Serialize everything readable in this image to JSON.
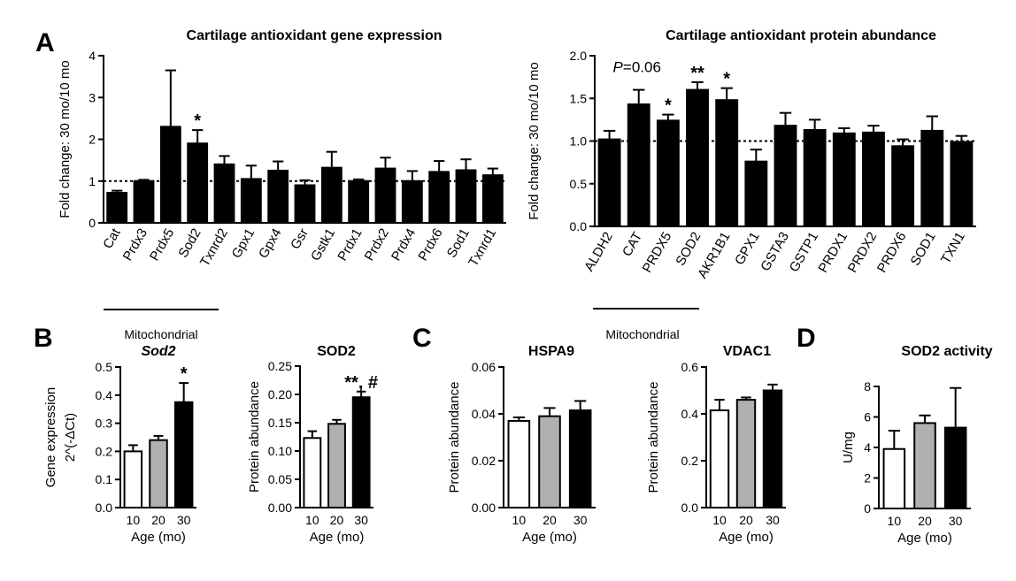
{
  "panel_letters": {
    "A": "A",
    "B": "B",
    "C": "C",
    "D": "D"
  },
  "chart_data": [
    {
      "id": "A1",
      "type": "bar",
      "title": "Cartilage antioxidant gene expression",
      "ylabel": "Fold change: 30 mo/10 mo",
      "ylim": [
        0,
        4
      ],
      "yticks": [
        "0",
        "1",
        "2",
        "3",
        "4"
      ],
      "reference_line": 1,
      "categories": [
        "Cat",
        "Prdx3",
        "Prdx5",
        "Sod2",
        "Txnrd2",
        "Gpx1",
        "Gpx4",
        "Gsr",
        "Gstk1",
        "Prdx1",
        "Prdx2",
        "Prdx4",
        "Prdx6",
        "Sod1",
        "Txnrd1"
      ],
      "values": [
        0.72,
        1.0,
        2.3,
        1.9,
        1.4,
        1.05,
        1.25,
        0.9,
        1.32,
        1.0,
        1.3,
        1.0,
        1.22,
        1.26,
        1.14
      ],
      "errors": [
        0.05,
        0.03,
        1.35,
        0.32,
        0.2,
        0.32,
        0.22,
        0.12,
        0.38,
        0.04,
        0.26,
        0.24,
        0.26,
        0.26,
        0.16
      ],
      "fills": [
        "black",
        "black",
        "black",
        "black",
        "black",
        "black",
        "black",
        "black",
        "black",
        "black",
        "black",
        "black",
        "black",
        "black",
        "black"
      ],
      "annotations": [
        {
          "index": 3,
          "text": "*"
        }
      ],
      "group_label": "Mitochondrial",
      "group_range": [
        0,
        4
      ]
    },
    {
      "id": "A2",
      "type": "bar",
      "title": "Cartilage antioxidant protein abundance",
      "ylabel": "Fold change: 30 mo/10 mo",
      "ylim": [
        0,
        2
      ],
      "yticks": [
        "0.0",
        "0.5",
        "1.0",
        "1.5",
        "2.0"
      ],
      "reference_line": 1,
      "categories": [
        "ALDH2",
        "CAT",
        "PRDX5",
        "SOD2",
        "AKR1B1",
        "GPX1",
        "GSTA3",
        "GSTP1",
        "PRDX1",
        "PRDX2",
        "PRDX6",
        "SOD1",
        "TXN1"
      ],
      "values": [
        1.02,
        1.43,
        1.24,
        1.6,
        1.48,
        0.76,
        1.18,
        1.13,
        1.09,
        1.1,
        0.94,
        1.12,
        0.99
      ],
      "errors": [
        0.1,
        0.17,
        0.07,
        0.09,
        0.14,
        0.14,
        0.15,
        0.12,
        0.06,
        0.08,
        0.08,
        0.17,
        0.07
      ],
      "fills": [
        "black",
        "black",
        "black",
        "black",
        "black",
        "black",
        "black",
        "black",
        "black",
        "black",
        "black",
        "black",
        "black"
      ],
      "annotations": [
        {
          "index": 1,
          "text": "P=0.06"
        },
        {
          "index": 2,
          "text": "*"
        },
        {
          "index": 3,
          "text": "**"
        },
        {
          "index": 4,
          "text": "*"
        }
      ],
      "group_label": "Mitochondrial",
      "group_range": [
        0,
        3
      ]
    },
    {
      "id": "B1",
      "type": "bar",
      "title": "Sod2",
      "ylabel": "Gene expression",
      "ylabel2": "2^(-ΔCt)",
      "xlabel": "Age (mo)",
      "ylim": [
        0,
        0.5
      ],
      "yticks": [
        "0.0",
        "0.1",
        "0.2",
        "0.3",
        "0.4",
        "0.5"
      ],
      "categories": [
        "10",
        "20",
        "30"
      ],
      "values": [
        0.2,
        0.24,
        0.375
      ],
      "errors": [
        0.022,
        0.015,
        0.068
      ],
      "fills": [
        "white",
        "#b0b0b0",
        "black"
      ],
      "annotations": [
        {
          "index": 2,
          "text": "*"
        }
      ]
    },
    {
      "id": "B2",
      "type": "bar",
      "title": "SOD2",
      "ylabel": "Protein abundance",
      "xlabel": "Age (mo)",
      "ylim": [
        0,
        0.25
      ],
      "yticks": [
        "0.00",
        "0.05",
        "0.10",
        "0.15",
        "0.20",
        "0.25"
      ],
      "categories": [
        "10",
        "20",
        "30"
      ],
      "values": [
        0.123,
        0.148,
        0.195
      ],
      "errors": [
        0.012,
        0.007,
        0.01
      ],
      "fills": [
        "white",
        "#b0b0b0",
        "black"
      ],
      "annotations": [
        {
          "index": 2,
          "text": "**, #"
        }
      ]
    },
    {
      "id": "C1",
      "type": "bar",
      "title": "HSPA9",
      "ylabel": "Protein abundance",
      "xlabel": "Age (mo)",
      "ylim": [
        0,
        0.06
      ],
      "yticks": [
        "0.00",
        "0.02",
        "0.04",
        "0.06"
      ],
      "categories": [
        "10",
        "20",
        "30"
      ],
      "values": [
        0.037,
        0.039,
        0.0415
      ],
      "errors": [
        0.0015,
        0.0035,
        0.004
      ],
      "fills": [
        "white",
        "#b0b0b0",
        "black"
      ],
      "annotations": []
    },
    {
      "id": "C2",
      "type": "bar",
      "title": "VDAC1",
      "ylabel": "Protein abundance",
      "xlabel": "Age (mo)",
      "ylim": [
        0,
        0.6
      ],
      "yticks": [
        "0.0",
        "0.2",
        "0.4",
        "0.6"
      ],
      "categories": [
        "10",
        "20",
        "30"
      ],
      "values": [
        0.415,
        0.46,
        0.5
      ],
      "errors": [
        0.045,
        0.01,
        0.025
      ],
      "fills": [
        "white",
        "#b0b0b0",
        "black"
      ],
      "annotations": []
    },
    {
      "id": "D1",
      "type": "bar",
      "title": "SOD2 activity",
      "ylabel": "U/mg",
      "xlabel": "Age (mo)",
      "ylim": [
        0,
        8
      ],
      "yticks": [
        "0",
        "2",
        "4",
        "6",
        "8"
      ],
      "categories": [
        "10",
        "20",
        "30"
      ],
      "values": [
        3.9,
        5.6,
        5.3
      ],
      "errors": [
        1.2,
        0.5,
        2.6
      ],
      "fills": [
        "white",
        "#b0b0b0",
        "black"
      ],
      "annotations": []
    }
  ]
}
